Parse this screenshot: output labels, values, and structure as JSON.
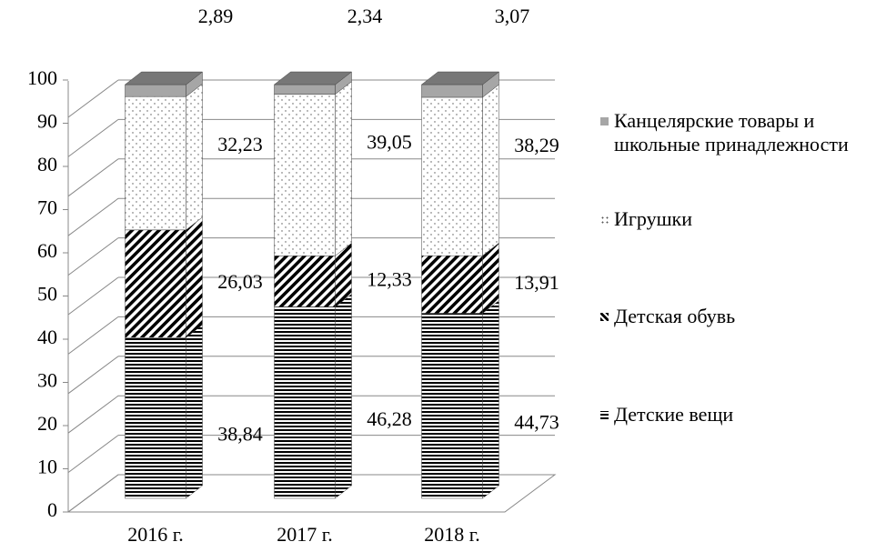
{
  "chart_data": {
    "type": "bar3d_stacked",
    "categories": [
      "2016 г.",
      "2017 г.",
      "2018 г."
    ],
    "ylim": [
      0,
      100
    ],
    "yticks": [
      0,
      10,
      20,
      30,
      40,
      50,
      60,
      70,
      80,
      90,
      100
    ],
    "grid": true,
    "legend": "right",
    "series": [
      {
        "name": "Детские вещи",
        "color": "#000000",
        "values": [
          38.84,
          46.28,
          44.73
        ],
        "value_labels": [
          "38,84",
          "46,28",
          "44,73"
        ]
      },
      {
        "name": "Детская обувь",
        "color": "#000000",
        "values": [
          26.03,
          12.33,
          13.91
        ],
        "value_labels": [
          "26,03",
          "12,33",
          "13,91"
        ]
      },
      {
        "name": "Игрушки",
        "color": "#555555",
        "values": [
          32.23,
          39.05,
          38.29
        ],
        "value_labels": [
          "32,23",
          "39,05",
          "38,29"
        ]
      },
      {
        "name": "Канцелярские товары и школьные принадлежности",
        "color": "#a6a6a6",
        "values": [
          2.89,
          2.34,
          3.07
        ],
        "value_labels": [
          "2,89",
          "2,34",
          "3,07"
        ]
      }
    ]
  }
}
